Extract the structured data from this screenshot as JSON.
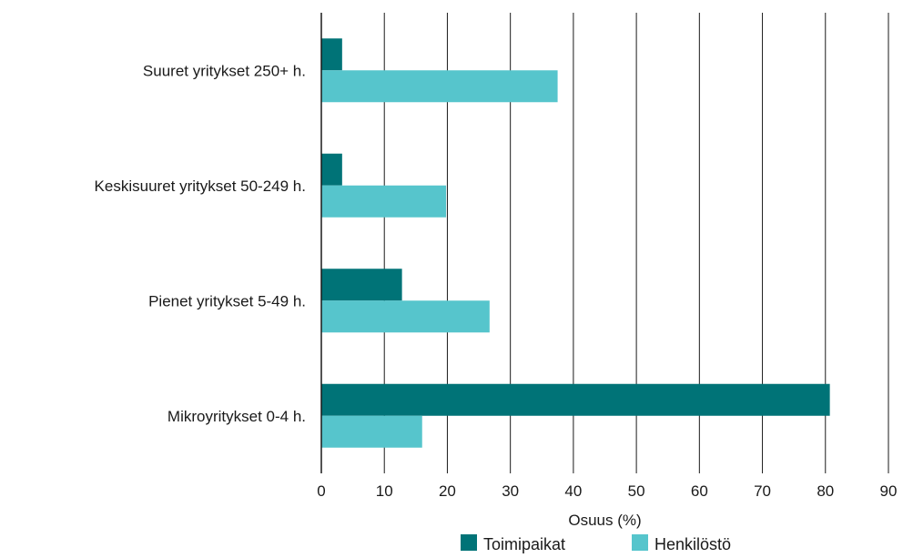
{
  "chart_data": {
    "type": "bar",
    "orientation": "horizontal",
    "categories": [
      "Suuret yritykset 250+ h.",
      "Keskisuuret yritykset 50-249 h.",
      "Pienet yritykset 5-49 h.",
      "Mikroyritykset 0-4 h."
    ],
    "series": [
      {
        "name": "Toimipaikat",
        "color": "#007377",
        "values": [
          3.3,
          3.3,
          12.8,
          80.7
        ]
      },
      {
        "name": "Henkilöstö",
        "color": "#56C5CC",
        "values": [
          37.5,
          19.8,
          26.7,
          16.0
        ]
      }
    ],
    "xlabel": "Osuus (%)",
    "ylabel": "",
    "xlim": [
      0,
      90
    ],
    "xticks": [
      0,
      10,
      20,
      30,
      40,
      50,
      60,
      70,
      80,
      90
    ],
    "grid": "vertical",
    "legend": "bottom"
  }
}
